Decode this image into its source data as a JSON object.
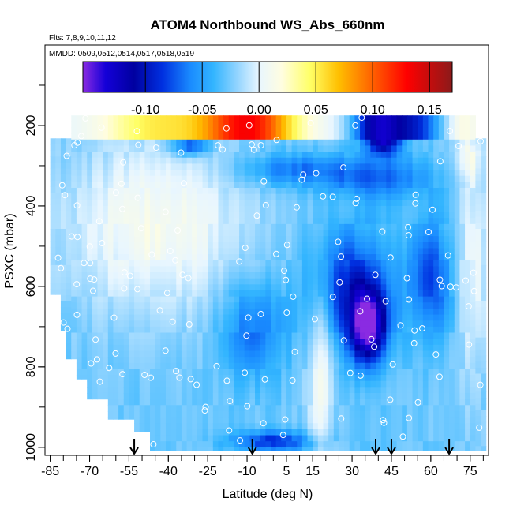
{
  "chart_data": {
    "type": "heatmap",
    "title": "ATOM4 Northbound WS_Abs_660nm",
    "subtitle_flights": "Flts: 7,8,9,10,11,12",
    "subtitle_dates": "MMDD: 0509,0512,0514,0517,0518,0519",
    "xlabel": "Latitude (deg N)",
    "ylabel": "PSXC (mbar)",
    "xlim": [
      -87,
      82
    ],
    "ylim": [
      1020,
      0
    ],
    "x_ticks": [
      -85,
      -70,
      -55,
      -40,
      -25,
      -10,
      5,
      15,
      30,
      45,
      60,
      75
    ],
    "y_ticks": [
      200,
      400,
      600,
      800,
      1000
    ],
    "colorbar": {
      "range": [
        -0.155,
        0.17
      ],
      "ticks": [
        -0.1,
        -0.05,
        0.0,
        0.05,
        0.1,
        0.15
      ],
      "tick_labels": [
        "-0.10",
        "-0.05",
        "0.00",
        "0.05",
        "0.10",
        "0.15"
      ],
      "stops": [
        {
          "v": -0.155,
          "color": "#8a2be2"
        },
        {
          "v": -0.135,
          "color": "#1400d8"
        },
        {
          "v": -0.11,
          "color": "#0000a0"
        },
        {
          "v": -0.085,
          "color": "#0030e0"
        },
        {
          "v": -0.06,
          "color": "#1a8cff"
        },
        {
          "v": -0.04,
          "color": "#33b5ff"
        },
        {
          "v": -0.02,
          "color": "#8fd3ff"
        },
        {
          "v": 0.0,
          "color": "#e8f6ff"
        },
        {
          "v": 0.02,
          "color": "#fffde0"
        },
        {
          "v": 0.045,
          "color": "#ffff66"
        },
        {
          "v": 0.07,
          "color": "#ffbf00"
        },
        {
          "v": 0.1,
          "color": "#ff6000"
        },
        {
          "v": 0.13,
          "color": "#ff0000"
        },
        {
          "v": 0.17,
          "color": "#8b1a1a"
        }
      ]
    },
    "arrows_lat": [
      -53,
      -8,
      39,
      45,
      67
    ],
    "grid": false
  }
}
